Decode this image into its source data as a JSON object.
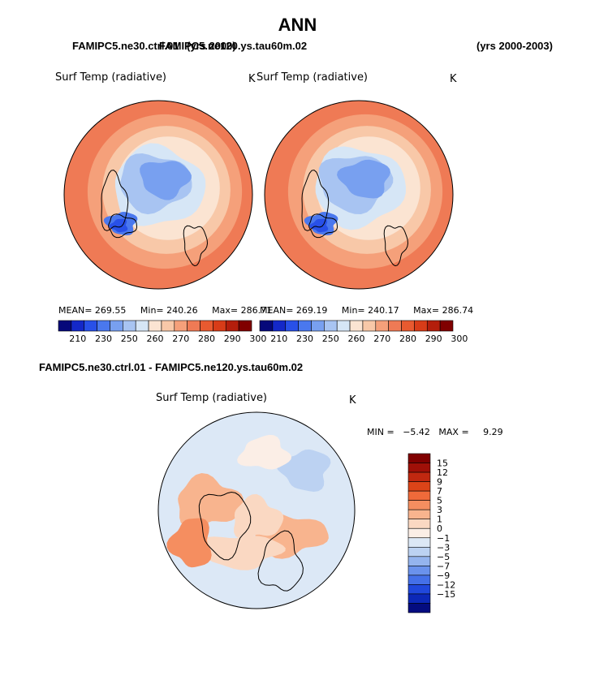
{
  "page": {
    "title": "ANN",
    "case1_name": "FAMIPC5.ne30.ctrl.01",
    "case1_years": "(yrs 2000)",
    "case2_name": "FAMIPC5.ne120.ys.tau60m.02",
    "case2_years": "(yrs 2000-2003)",
    "diff_title": "FAMIPC5.ne30.ctrl.01 - FAMIPC5.ne120.ys.tau60m.02"
  },
  "chart_data": [
    {
      "type": "heatmap",
      "projection": "north polar stereographic",
      "title": "Surf Temp (radiative)",
      "units": "K",
      "stats": {
        "mean_label": "MEAN=",
        "mean": "269.55",
        "min_label": "Min=",
        "min": "240.26",
        "max_label": "Max=",
        "max": "286.71"
      },
      "colorbar": {
        "orientation": "horizontal",
        "levels": [
          "210",
          "230",
          "250",
          "260",
          "270",
          "280",
          "290",
          "300"
        ],
        "colors": [
          "#06087a",
          "#1428c8",
          "#2850e8",
          "#4a78ee",
          "#78a0f0",
          "#a8c4f2",
          "#d6e6f6",
          "#fbe4d2",
          "#f8c8a8",
          "#f5a07a",
          "#ef7a55",
          "#e85a30",
          "#d83c18",
          "#b41e0c",
          "#800000"
        ]
      }
    },
    {
      "type": "heatmap",
      "projection": "north polar stereographic",
      "title": "Surf Temp (radiative)",
      "units": "K",
      "stats": {
        "mean_label": "MEAN=",
        "mean": "269.19",
        "min_label": "Min=",
        "min": "240.17",
        "max_label": "Max=",
        "max": "286.74"
      },
      "colorbar": {
        "orientation": "horizontal",
        "levels": [
          "210",
          "230",
          "250",
          "260",
          "270",
          "280",
          "290",
          "300"
        ],
        "colors": [
          "#06087a",
          "#1428c8",
          "#2850e8",
          "#4a78ee",
          "#78a0f0",
          "#a8c4f2",
          "#d6e6f6",
          "#fbe4d2",
          "#f8c8a8",
          "#f5a07a",
          "#ef7a55",
          "#e85a30",
          "#d83c18",
          "#b41e0c",
          "#800000"
        ]
      }
    },
    {
      "type": "heatmap",
      "projection": "north polar stereographic",
      "title": "Surf Temp (radiative)",
      "units": "K",
      "stats": {
        "min_label": "MIN =",
        "min": "−5.42",
        "max_label": "MAX =",
        "max": "9.29"
      },
      "colorbar": {
        "orientation": "vertical",
        "levels": [
          "15",
          "12",
          "9",
          "7",
          "5",
          "3",
          "1",
          "0",
          "−1",
          "−3",
          "−5",
          "−7",
          "−9",
          "−12",
          "−15"
        ],
        "colors": [
          "#800000",
          "#a01008",
          "#c02810",
          "#dc4418",
          "#ef6a3a",
          "#f58e60",
          "#f8b48e",
          "#fad8c2",
          "#fbeee6",
          "#dce8f6",
          "#bcd2f2",
          "#94b4ee",
          "#6a92ec",
          "#4470e8",
          "#2048dc",
          "#0c28b8",
          "#040c80"
        ]
      }
    }
  ]
}
